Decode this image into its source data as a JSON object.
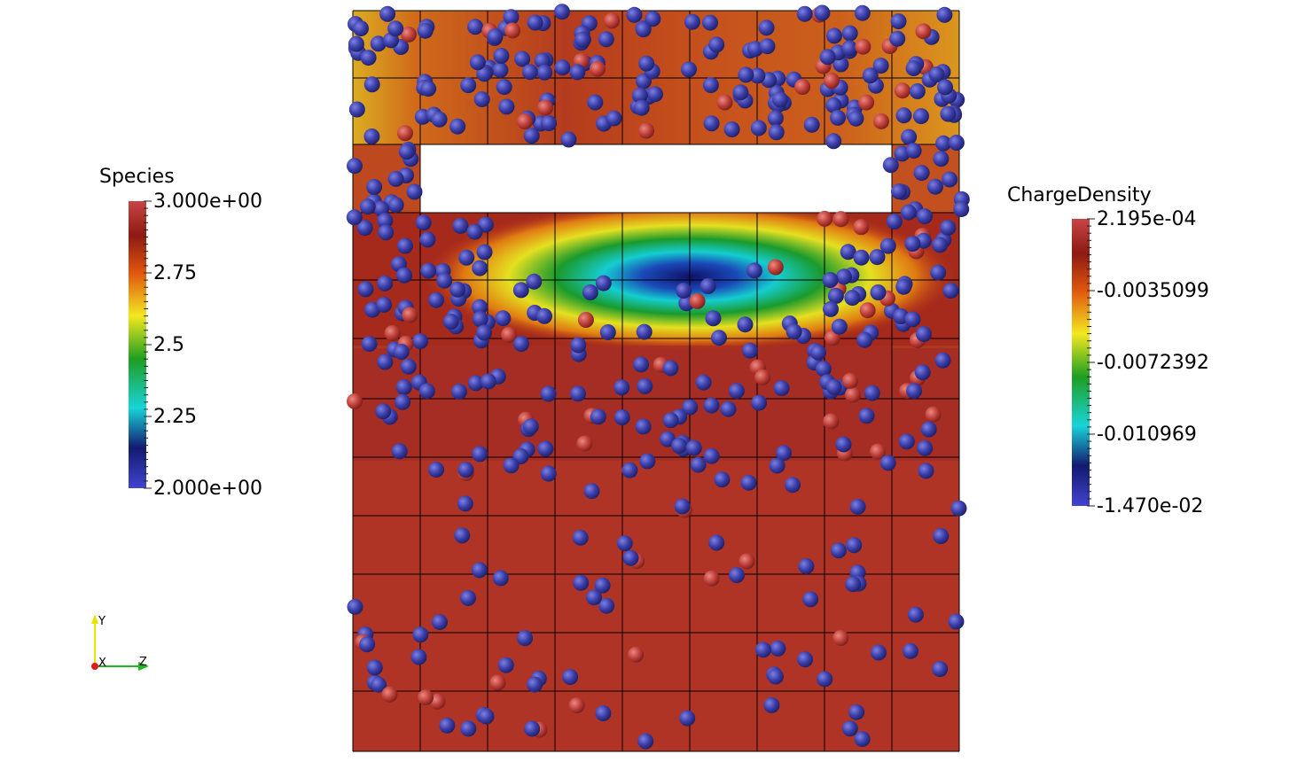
{
  "render_view": {
    "colors": {
      "background": "#ffffff",
      "mesh_line": "#000000",
      "particle_blue": "#3b3ea8",
      "particle_red": "#c0403a"
    }
  },
  "species_legend": {
    "title": "Species",
    "ticks": [
      "3.000e+00",
      "2.75",
      "2.5",
      "2.25",
      "2.000e+00"
    ]
  },
  "charge_legend": {
    "title": "ChargeDensity",
    "ticks": [
      "2.195e-04",
      "-0.0035099",
      "-0.0072392",
      "-0.010969",
      "-1.470e-02"
    ]
  },
  "orientation_axes": {
    "y_label": "Y",
    "x_label": "X",
    "z_label": "Z",
    "y_color": "#e6e600",
    "z_color": "#1fb81f",
    "x_color": "#e01b1b"
  }
}
